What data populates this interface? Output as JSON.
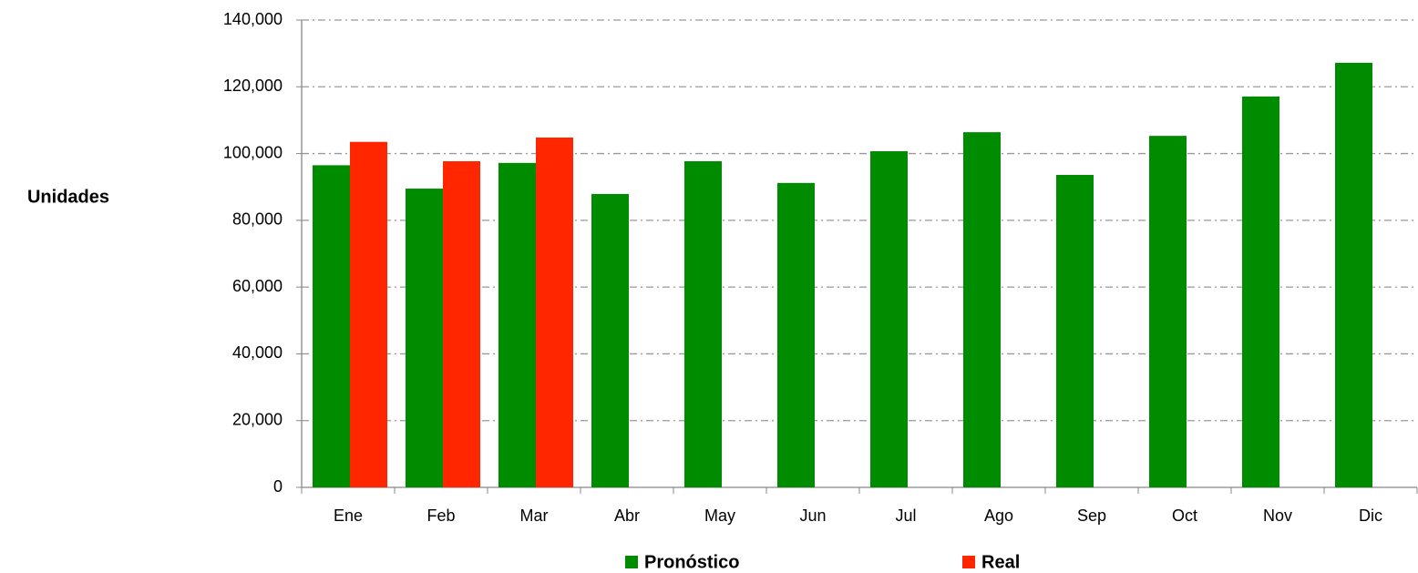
{
  "chart_data": {
    "type": "bar",
    "y_label": "Unidades",
    "categories": [
      "Ene",
      "Feb",
      "Mar",
      "Abr",
      "May",
      "Jun",
      "Jul",
      "Ago",
      "Sep",
      "Oct",
      "Nov",
      "Dic"
    ],
    "series": [
      {
        "name": "Pronóstico",
        "color": "#008c00",
        "values": [
          96500,
          89500,
          97200,
          87900,
          97700,
          91200,
          100700,
          106400,
          93600,
          105300,
          117100,
          127200
        ]
      },
      {
        "name": "Real",
        "color": "#ff2600",
        "values": [
          103500,
          97700,
          104800,
          null,
          null,
          null,
          null,
          null,
          null,
          null,
          null,
          null
        ]
      }
    ],
    "ylim": [
      0,
      140000
    ],
    "yticks": [
      0,
      {
        "value": 20000,
        "label": "20,000"
      },
      {
        "value": 40000,
        "label": "40,000"
      },
      {
        "value": 60000,
        "label": "60,000"
      },
      {
        "value": 80000,
        "label": "80,000"
      },
      {
        "value": 100000,
        "label": "100,000"
      },
      {
        "value": 120000,
        "label": "120,000"
      },
      {
        "value": 140000,
        "label": "140,000"
      }
    ],
    "grid": true
  }
}
